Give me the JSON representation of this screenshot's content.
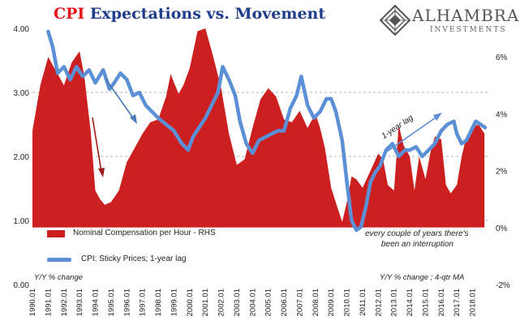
{
  "title": {
    "part1": "CPI",
    "part2": "Expectations vs. Movement"
  },
  "logo": {
    "name": "ALHAMBRA",
    "sub": "INVESTMENTS"
  },
  "legend": [
    {
      "label": "Nominal Compensation per Hour - RHS",
      "color": "#cc1f1f"
    },
    {
      "label": "CPI: Sticky Prices; 1-year lag",
      "color": "#5b8fd6"
    }
  ],
  "notes": {
    "left_axis": "Y/Y % change",
    "right_axis": "Y/Y % change ; 4-qtr MA"
  },
  "annotations": {
    "lag": "1-year lag",
    "interruption_1": "every couple of years there's",
    "interruption_2": "been an interruption"
  },
  "colors": {
    "area": "#cc1f1f",
    "line": "#5b8fd6",
    "annotation_arrow_red": "#a01818",
    "annotation_arrow_blue": "#4a78b8"
  },
  "chart_data": {
    "type": "area+line",
    "x_start": "1990-01",
    "x_end": "2018-12",
    "tick_labels": [
      "1990.01",
      "1991.01",
      "1992.01",
      "1993.01",
      "1994.01",
      "1995.01",
      "1996.01",
      "1997.01",
      "1998.01",
      "1999.01",
      "2000.01",
      "2001.01",
      "2002.01",
      "2003.01",
      "2004.01",
      "2005.01",
      "2006.01",
      "2007.01",
      "2008.01",
      "2009.01",
      "2010.01",
      "2011.01",
      "2012.01",
      "2013.01",
      "2014.01",
      "2015.01",
      "2016.01",
      "2017.01",
      "2018.01"
    ],
    "left_axis": {
      "min": 0,
      "max": 4,
      "ticks": [
        "0.00",
        "1.00",
        "2.00",
        "3.00",
        "4.00"
      ]
    },
    "right_axis": {
      "min": -2,
      "max": 7,
      "ticks": [
        "-2%",
        "0%",
        "2%",
        "4%",
        "6%"
      ]
    },
    "series": [
      {
        "name": "Nominal Compensation per Hour - RHS",
        "axis": "right",
        "kind": "area",
        "points": [
          [
            1990.0,
            3.4
          ],
          [
            1990.5,
            5.0
          ],
          [
            1991.0,
            6.0
          ],
          [
            1991.5,
            5.5
          ],
          [
            1992.0,
            5.0
          ],
          [
            1992.5,
            5.8
          ],
          [
            1993.0,
            6.2
          ],
          [
            1993.3,
            5.3
          ],
          [
            1993.7,
            3.4
          ],
          [
            1994.0,
            1.3
          ],
          [
            1994.3,
            1.0
          ],
          [
            1994.6,
            0.8
          ],
          [
            1995.0,
            0.9
          ],
          [
            1995.5,
            1.3
          ],
          [
            1996.0,
            2.3
          ],
          [
            1996.5,
            2.8
          ],
          [
            1997.0,
            3.3
          ],
          [
            1997.5,
            3.7
          ],
          [
            1998.0,
            3.8
          ],
          [
            1998.5,
            4.6
          ],
          [
            1998.8,
            5.4
          ],
          [
            1999.0,
            5.1
          ],
          [
            1999.3,
            4.7
          ],
          [
            1999.6,
            5.0
          ],
          [
            2000.0,
            5.6
          ],
          [
            2000.5,
            6.9
          ],
          [
            2001.0,
            7.0
          ],
          [
            2001.5,
            6.0
          ],
          [
            2002.0,
            4.9
          ],
          [
            2002.5,
            3.3
          ],
          [
            2003.0,
            2.2
          ],
          [
            2003.5,
            2.4
          ],
          [
            2004.0,
            3.5
          ],
          [
            2004.5,
            4.5
          ],
          [
            2005.0,
            4.9
          ],
          [
            2005.5,
            4.6
          ],
          [
            2006.0,
            3.8
          ],
          [
            2006.5,
            3.7
          ],
          [
            2007.0,
            4.1
          ],
          [
            2007.5,
            3.5
          ],
          [
            2008.0,
            4.0
          ],
          [
            2008.3,
            3.5
          ],
          [
            2008.6,
            2.8
          ],
          [
            2009.0,
            1.4
          ],
          [
            2009.4,
            0.7
          ],
          [
            2009.7,
            0.2
          ],
          [
            2010.0,
            0.9
          ],
          [
            2010.3,
            1.8
          ],
          [
            2010.6,
            1.7
          ],
          [
            2011.0,
            1.4
          ],
          [
            2011.5,
            2.0
          ],
          [
            2012.0,
            2.6
          ],
          [
            2012.3,
            2.4
          ],
          [
            2012.6,
            1.5
          ],
          [
            2013.0,
            1.3
          ],
          [
            2013.3,
            3.6
          ],
          [
            2013.6,
            2.9
          ],
          [
            2014.0,
            2.5
          ],
          [
            2014.3,
            1.3
          ],
          [
            2014.6,
            2.5
          ],
          [
            2015.0,
            1.7
          ],
          [
            2015.3,
            2.6
          ],
          [
            2015.6,
            3.2
          ],
          [
            2016.0,
            3.1
          ],
          [
            2016.3,
            1.5
          ],
          [
            2016.6,
            1.2
          ],
          [
            2017.0,
            1.5
          ],
          [
            2017.3,
            2.5
          ],
          [
            2017.6,
            3.2
          ],
          [
            2018.0,
            3.6
          ],
          [
            2018.4,
            3.6
          ],
          [
            2018.75,
            3.3
          ]
        ]
      },
      {
        "name": "CPI: Sticky Prices; 1-year lag",
        "axis": "left",
        "kind": "line",
        "points": [
          [
            1990.0,
            3.95
          ],
          [
            1990.3,
            3.7
          ],
          [
            1990.6,
            3.3
          ],
          [
            1991.0,
            3.4
          ],
          [
            1991.4,
            3.2
          ],
          [
            1991.8,
            3.4
          ],
          [
            1992.2,
            3.25
          ],
          [
            1992.6,
            3.35
          ],
          [
            1993.0,
            3.15
          ],
          [
            1993.5,
            3.35
          ],
          [
            1993.9,
            3.05
          ],
          [
            1994.2,
            3.15
          ],
          [
            1994.6,
            3.3
          ],
          [
            1995.0,
            3.2
          ],
          [
            1995.4,
            2.95
          ],
          [
            1995.8,
            3.0
          ],
          [
            1996.2,
            2.8
          ],
          [
            1996.6,
            2.7
          ],
          [
            1997.0,
            2.6
          ],
          [
            1997.5,
            2.5
          ],
          [
            1998.0,
            2.4
          ],
          [
            1998.5,
            2.2
          ],
          [
            1998.9,
            2.1
          ],
          [
            1999.2,
            2.3
          ],
          [
            1999.6,
            2.45
          ],
          [
            2000.0,
            2.6
          ],
          [
            2000.4,
            2.8
          ],
          [
            2000.8,
            3.0
          ],
          [
            2001.1,
            3.4
          ],
          [
            2001.5,
            3.2
          ],
          [
            2001.9,
            2.95
          ],
          [
            2002.2,
            2.55
          ],
          [
            2002.6,
            2.2
          ],
          [
            2003.0,
            2.05
          ],
          [
            2003.4,
            2.25
          ],
          [
            2003.8,
            2.3
          ],
          [
            2004.2,
            2.35
          ],
          [
            2004.6,
            2.4
          ],
          [
            2005.0,
            2.4
          ],
          [
            2005.4,
            2.75
          ],
          [
            2005.8,
            2.95
          ],
          [
            2006.1,
            3.25
          ],
          [
            2006.5,
            2.8
          ],
          [
            2006.9,
            2.6
          ],
          [
            2007.3,
            2.7
          ],
          [
            2007.7,
            2.9
          ],
          [
            2008.0,
            2.9
          ],
          [
            2008.3,
            2.7
          ],
          [
            2008.7,
            2.25
          ],
          [
            2009.0,
            1.6
          ],
          [
            2009.3,
            1.0
          ],
          [
            2009.6,
            0.85
          ],
          [
            2009.9,
            0.9
          ],
          [
            2010.2,
            1.2
          ],
          [
            2010.5,
            1.6
          ],
          [
            2010.8,
            1.75
          ],
          [
            2011.1,
            1.85
          ],
          [
            2011.5,
            2.1
          ],
          [
            2011.9,
            2.2
          ],
          [
            2012.3,
            2.0
          ],
          [
            2012.7,
            2.1
          ],
          [
            2013.0,
            2.1
          ],
          [
            2013.4,
            2.15
          ],
          [
            2013.8,
            2.0
          ],
          [
            2014.2,
            2.1
          ],
          [
            2014.6,
            2.2
          ],
          [
            2015.0,
            2.4
          ],
          [
            2015.4,
            2.5
          ],
          [
            2015.8,
            2.55
          ],
          [
            2016.0,
            2.35
          ],
          [
            2016.3,
            2.2
          ],
          [
            2016.6,
            2.25
          ],
          [
            2016.9,
            2.4
          ],
          [
            2017.2,
            2.55
          ],
          [
            2017.5,
            2.5
          ],
          [
            2017.8,
            2.45
          ]
        ]
      }
    ],
    "grid": true
  }
}
